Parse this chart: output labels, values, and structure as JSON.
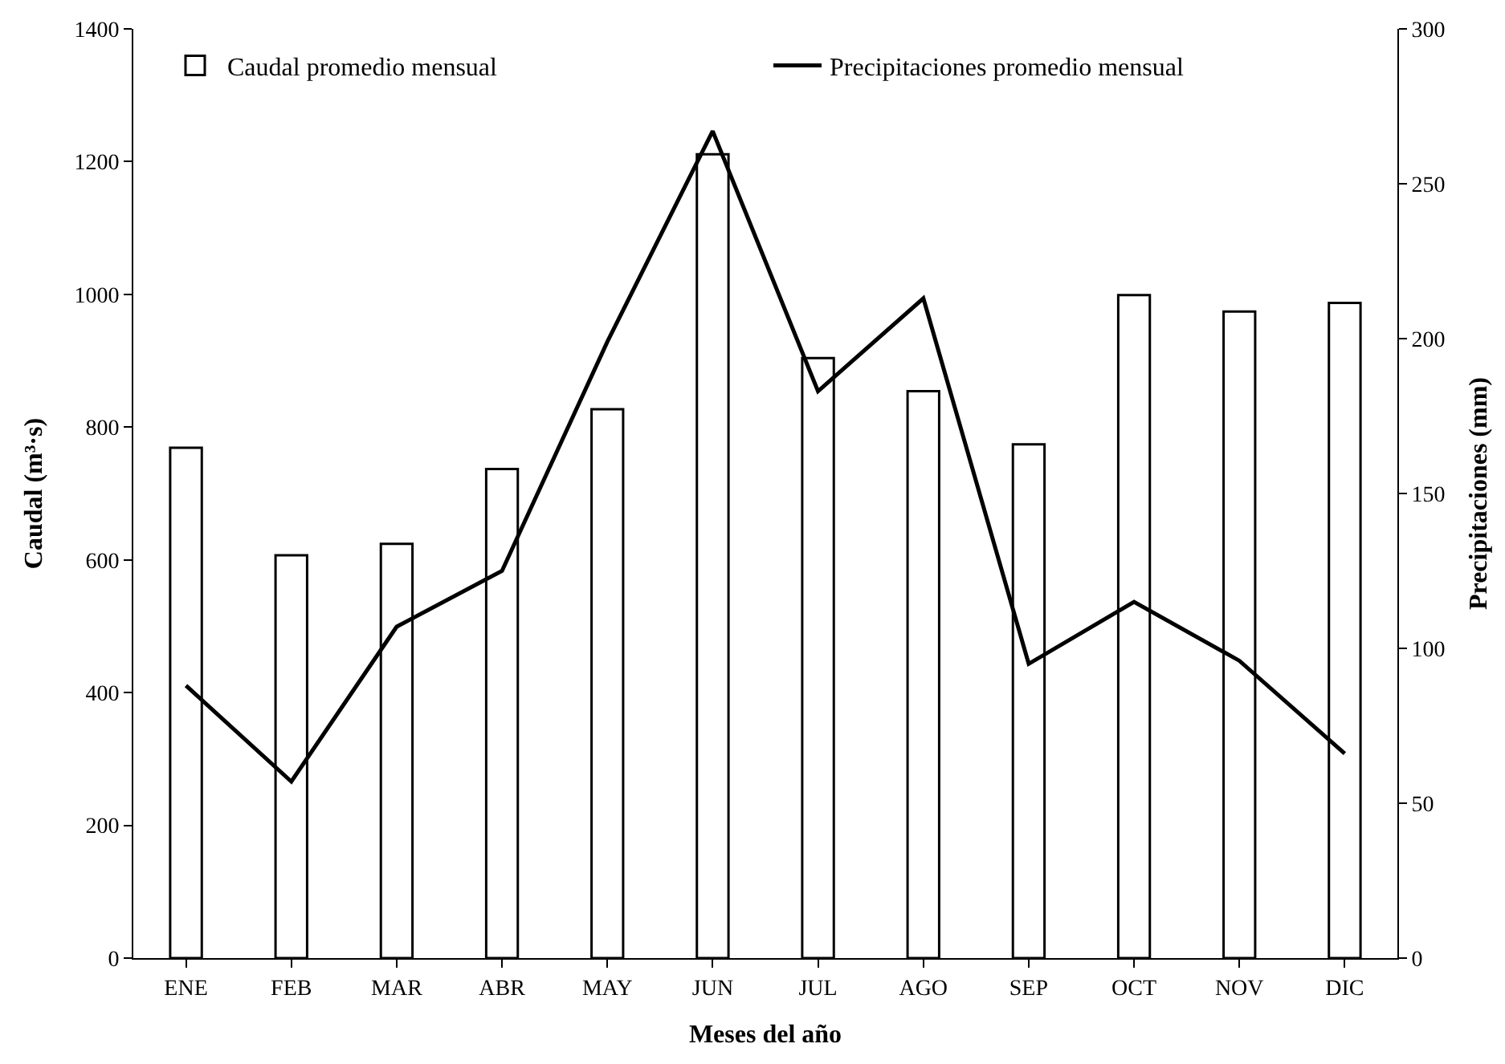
{
  "chart_data": {
    "type": "bar",
    "xlabel": "Meses del año",
    "ylabel": "Caudal (m³·s)",
    "y2label": "Precipitaciones (mm)",
    "categories": [
      "ENE",
      "FEB",
      "MAR",
      "ABR",
      "MAY",
      "JUN",
      "JUL",
      "AGO",
      "SEP",
      "OCT",
      "NOV",
      "DIC"
    ],
    "series": [
      {
        "name": "Caudal promedio mensual",
        "color": "#ffffff",
        "values": [
          769,
          607,
          624,
          737,
          827,
          1211,
          904,
          854,
          774,
          999,
          974,
          987
        ]
      },
      {
        "name": "Precipitaciones promedio mensual",
        "type": "line",
        "axis": "y2",
        "color": "#000000",
        "values": [
          88,
          57,
          107,
          125,
          199,
          267,
          183,
          213,
          95,
          115,
          96,
          66
        ]
      }
    ],
    "ylim": [
      0,
      1400
    ],
    "yticks": [
      0,
      200,
      400,
      600,
      800,
      1000,
      1200,
      1400
    ],
    "y2lim": [
      0,
      300
    ],
    "y2ticks": [
      0,
      50,
      100,
      150,
      200,
      250,
      300
    ],
    "grid": false,
    "legend": "top",
    "marker": "none",
    "line_style": "solid"
  }
}
